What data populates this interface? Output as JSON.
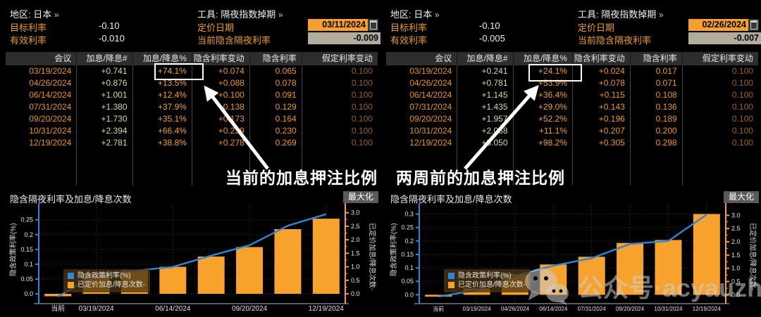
{
  "panels": [
    {
      "header": {
        "region_label": "地区:",
        "region_value": "日本",
        "chevron": "»",
        "tool_label": "工具:",
        "tool_value": "隔夜指数掉期",
        "target_rate_label": "目标利率",
        "target_rate_value": "-0.10",
        "effective_rate_label": "有效利率",
        "effective_rate_value": "-0.010",
        "pricing_date_label": "定价日期",
        "pricing_date_value": "03/11/2024",
        "implied_on_rate_label": "当前隐含隔夜利率",
        "implied_on_rate_value": "-0.009"
      },
      "table": {
        "columns": [
          "会议",
          "加息/降息#",
          "加息/降息%",
          "隐含利率变动",
          "隐含利率",
          "假定利率变动"
        ],
        "rows": [
          [
            "03/19/2024",
            "+0.741",
            "+74.1%",
            "+0.074",
            "0.065",
            "0.100"
          ],
          [
            "04/26/2024",
            "+0.876",
            "+13.5%",
            "+0.088",
            "0.078",
            "0.100"
          ],
          [
            "06/14/2024",
            "+1.001",
            "+12.4%",
            "+0.100",
            "0.091",
            "0.100"
          ],
          [
            "07/31/2024",
            "+1.380",
            "+37.9%",
            "+0.138",
            "0.129",
            "0.100"
          ],
          [
            "09/20/2024",
            "+1.730",
            "+35.1%",
            "+0.173",
            "0.164",
            "0.100"
          ],
          [
            "10/31/2024",
            "+2.394",
            "+66.4%",
            "+0.239",
            "0.230",
            "0.100"
          ],
          [
            "12/19/2024",
            "+2.781",
            "+38.8%",
            "+0.278",
            "0.269",
            "0.100"
          ]
        ],
        "highlight": {
          "row": 0,
          "col": 2,
          "value": "+74.1%"
        }
      },
      "annotation": "当前的加息押注比例"
    },
    {
      "header": {
        "region_label": "地区:",
        "region_value": "日本",
        "chevron": "»",
        "tool_label": "工具:",
        "tool_value": "隔夜指数掉期",
        "target_rate_label": "目标利率",
        "target_rate_value": "-0.10",
        "effective_rate_label": "有效利率",
        "effective_rate_value": "-0.005",
        "pricing_date_label": "定价日期",
        "pricing_date_value": "02/26/2024",
        "implied_on_rate_label": "当前隐含隔夜利率",
        "implied_on_rate_value": "-0.007"
      },
      "table": {
        "columns": [
          "会议",
          "加息/降息#",
          "加息/降息%",
          "隐含利率变动",
          "隐含利率",
          "假定利率变动"
        ],
        "rows": [
          [
            "03/19/2024",
            "+0.241",
            "+24.1%",
            "+0.024",
            "0.017",
            "0.100"
          ],
          [
            "04/26/2024",
            "+0.781",
            "+53.9%",
            "+0.078",
            "0.071",
            "0.100"
          ],
          [
            "06/14/2024",
            "+1.145",
            "+36.4%",
            "+0.115",
            "0.108",
            "0.100"
          ],
          [
            "07/31/2024",
            "+1.435",
            "+29.0%",
            "+0.143",
            "0.136",
            "0.100"
          ],
          [
            "09/20/2024",
            "+1.957",
            "+52.2%",
            "+0.196",
            "0.189",
            "0.100"
          ],
          [
            "10/31/2024",
            "+2.068",
            "+11.1%",
            "+0.207",
            "0.200",
            "0.100"
          ],
          [
            "12/19/2024",
            "+3.050",
            "+98.2%",
            "+0.305",
            "0.298",
            "0.100"
          ]
        ],
        "highlight": {
          "row": 0,
          "col": 2,
          "value": "+24.1%"
        }
      },
      "annotation": "两周前的加息押注比例"
    }
  ],
  "chart_data": [
    {
      "type": "bar+line",
      "title": "隐含隔夜利率及加息/降息次数",
      "maximize_label": "最大化",
      "left_axis_label": "隐含政策利率(%)",
      "right_axis_label": "已定价加息/降息次数-",
      "categories": [
        "当前",
        "03/19/2024",
        "04/26/2024",
        "06/14/2024",
        "07/31/2024",
        "09/20/2024",
        "10/31/2024",
        "12/19/2024"
      ],
      "x_tick_indices": [
        0,
        1,
        3,
        5,
        7
      ],
      "x_label_size": 10,
      "left_ticks": [
        "0.0",
        "0.05",
        "0.1",
        "0.15",
        "0.2",
        "0.25"
      ],
      "right_ticks": [
        "0.0",
        "0.5",
        "1.0",
        "1.5",
        "2.0",
        "2.5",
        "3.0"
      ],
      "left_range": [
        -0.033,
        0.292
      ],
      "right_range": [
        -0.363,
        3.2
      ],
      "grid": true,
      "legend_position": "bottom-left",
      "series": [
        {
          "name": "隐含政策利率(%)",
          "type": "line",
          "axis": "left",
          "color": "#2f86d6",
          "values": [
            -0.009,
            0.065,
            0.078,
            0.091,
            0.129,
            0.164,
            0.23,
            0.269
          ]
        },
        {
          "name": "已定价加息/降息次数-",
          "type": "bar",
          "axis": "right",
          "color": "#f6a22d",
          "values": [
            -0.09,
            0.741,
            0.876,
            1.001,
            1.38,
            1.73,
            2.394,
            2.781
          ]
        }
      ]
    },
    {
      "type": "bar+line",
      "title": "隐含隔夜利率及加息/降息次数",
      "maximize_label": "最大化",
      "left_axis_label": "隐含政策利率(%)",
      "right_axis_label": "已定价加息/降息次数-",
      "categories": [
        "当前",
        "03/19/2024",
        "04/26/2024",
        "06/14/2024",
        "07/31/2024",
        "09/20/2024",
        "10/31/2024",
        "12/19/2024"
      ],
      "x_tick_indices": [
        0,
        1,
        2,
        3,
        4,
        5,
        6,
        7
      ],
      "x_label_size": 8,
      "left_ticks": [
        "0.0",
        "0.05",
        "0.1",
        "0.15",
        "0.2",
        "0.25",
        "0.3"
      ],
      "right_ticks": [
        "0.0",
        "0.5",
        "1.0",
        "1.5",
        "2.0",
        "2.5",
        "3.0"
      ],
      "left_range": [
        -0.033,
        0.325
      ],
      "right_range": [
        -0.334,
        3.3
      ],
      "grid": true,
      "legend_position": "bottom-left",
      "series": [
        {
          "name": "隐含政策利率(%)",
          "type": "line",
          "axis": "left",
          "color": "#2f86d6",
          "values": [
            -0.007,
            0.017,
            0.071,
            0.108,
            0.136,
            0.189,
            0.2,
            0.298
          ]
        },
        {
          "name": "已定价加息/降息次数-",
          "type": "bar",
          "axis": "right",
          "color": "#f6a22d",
          "values": [
            -0.07,
            0.241,
            0.781,
            1.145,
            1.435,
            1.957,
            2.068,
            3.05
          ]
        }
      ]
    }
  ],
  "watermark": {
    "text": "公众号·acyauzh"
  },
  "colors": {
    "amber_label": "#ec9c28",
    "date_field_bg": "#f5a02c",
    "implied_field_bg": "#b3ab9c",
    "table_header_bg": "#2e2e2e",
    "bar_color": "#f6a22d",
    "line_color": "#2f86d6",
    "highlight_border": "#ffffff"
  }
}
